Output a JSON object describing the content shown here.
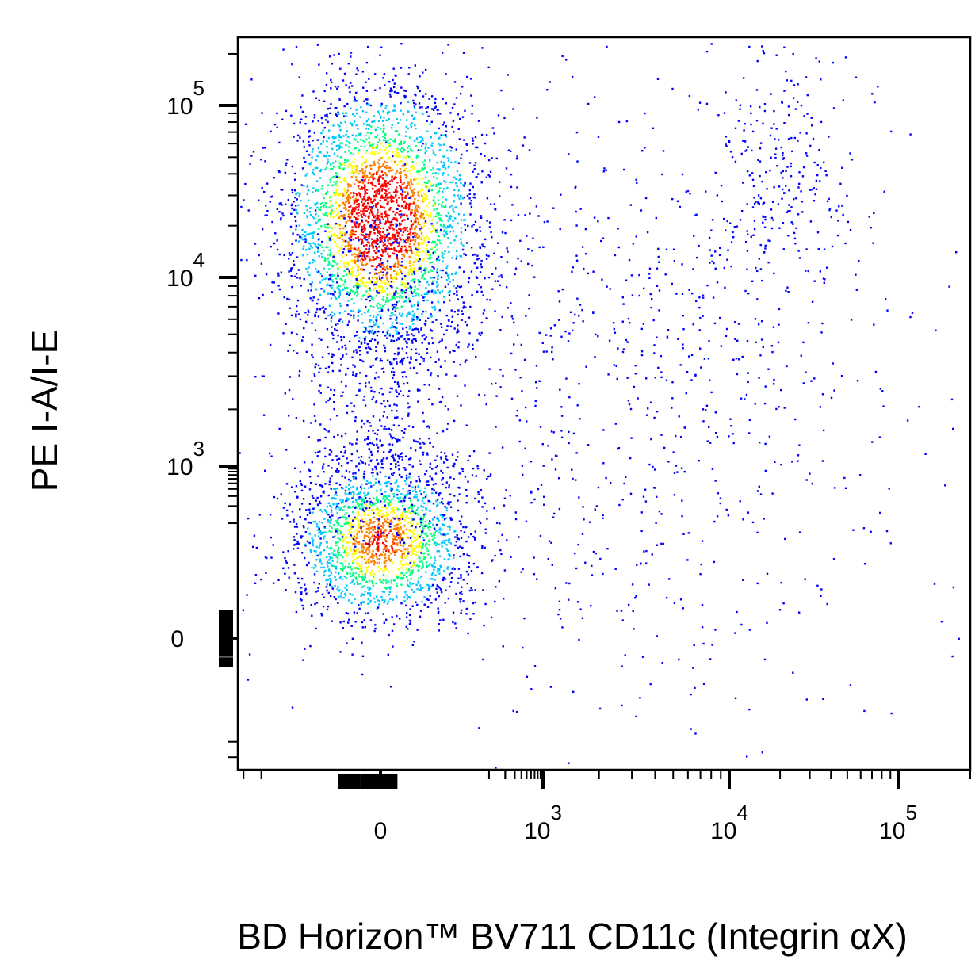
{
  "chart_data": {
    "type": "scatter",
    "subtype": "flow-cytometry-pseudocolor-density",
    "xlabel": "BD Horizon™ BV711 CD11c (Integrin αX)",
    "ylabel": "PE I-A/I-E",
    "x_scale": "biexponential",
    "y_scale": "biexponential",
    "grid": false,
    "legend": "none",
    "x_ticks": [
      {
        "base": "0",
        "exp": "",
        "value": 0
      },
      {
        "base": "10",
        "exp": "3",
        "value": 1000
      },
      {
        "base": "10",
        "exp": "4",
        "value": 10000
      },
      {
        "base": "10",
        "exp": "5",
        "value": 100000
      }
    ],
    "y_ticks": [
      {
        "base": "0",
        "exp": "",
        "value": 0
      },
      {
        "base": "10",
        "exp": "3",
        "value": 1000
      },
      {
        "base": "10",
        "exp": "4",
        "value": 10000
      },
      {
        "base": "10",
        "exp": "5",
        "value": 100000
      }
    ],
    "density_colormap": [
      "#0000ff",
      "#00c8ff",
      "#00ff80",
      "#ffff00",
      "#ff8000",
      "#ff0000"
    ],
    "point_color": "#0000ff",
    "populations": [
      {
        "name": "",
        "x_center": 0,
        "y_center": 22000,
        "relative_density": "highest"
      },
      {
        "name": "",
        "x_center": 0,
        "y_center": 50,
        "relative_density": "high"
      },
      {
        "name": "",
        "x_center": 3000,
        "y_center": 3000,
        "relative_density": "sparse"
      },
      {
        "name": "",
        "x_center": 20000,
        "y_center": 40000,
        "relative_density": "sparse"
      }
    ]
  }
}
